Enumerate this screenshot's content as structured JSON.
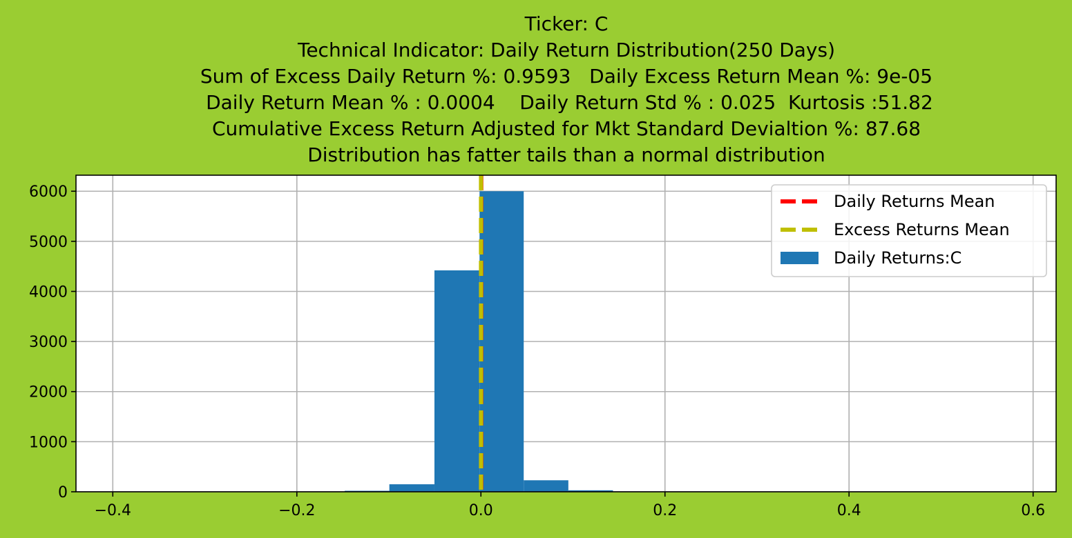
{
  "chart_data": {
    "type": "bar",
    "title_lines": [
      "Ticker: C",
      "Technical Indicator: Daily Return Distribution(250 Days)",
      "Sum of Excess Daily Return %: 0.9593   Daily Excess Return Mean %: 9e-05",
      " Daily Return Mean % : 0.0004    Daily Return Std % : 0.025  Kurtosis :51.82",
      "Cumulative Excess Return Adjusted for Mkt Standard Devialtion %: 87.68",
      "Distribution has fatter tails than a normal distribution"
    ],
    "xlim": [
      -0.44,
      0.625
    ],
    "ylim": [
      0,
      6320
    ],
    "xticks": [
      -0.4,
      -0.2,
      0.0,
      0.2,
      0.4,
      0.6
    ],
    "xtick_labels": [
      "−0.4",
      "−0.2",
      "0.0",
      "0.2",
      "0.4",
      "0.6"
    ],
    "yticks": [
      0,
      1000,
      2000,
      3000,
      4000,
      5000,
      6000
    ],
    "ytick_labels": [
      "0",
      "1000",
      "2000",
      "3000",
      "4000",
      "5000",
      "6000"
    ],
    "grid": true,
    "legend_position": "top-right",
    "histogram": {
      "name": "Daily Returns:C",
      "color": "#1f77b4",
      "bins": [
        {
          "x0": -0.148,
          "x1": -0.0995,
          "count": 20
        },
        {
          "x0": -0.0995,
          "x1": -0.0505,
          "count": 150
        },
        {
          "x0": -0.0505,
          "x1": -0.0015,
          "count": 4420
        },
        {
          "x0": -0.0015,
          "x1": 0.0465,
          "count": 6000
        },
        {
          "x0": 0.0465,
          "x1": 0.095,
          "count": 230
        },
        {
          "x0": 0.095,
          "x1": 0.1435,
          "count": 30
        }
      ]
    },
    "vlines": [
      {
        "name": "Daily Returns Mean",
        "x": 0.0004,
        "color": "#ff0000"
      },
      {
        "name": "Excess Returns Mean",
        "x": 9e-05,
        "color": "#bfbf00"
      }
    ]
  }
}
